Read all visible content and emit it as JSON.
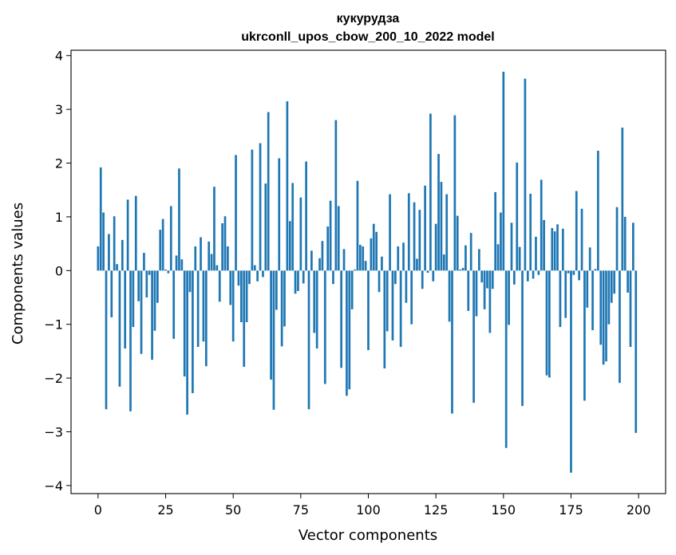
{
  "chart_data": {
    "type": "bar",
    "title": "кукурудза",
    "subtitle": "ukrconll_upos_cbow_200_10_2022 model",
    "xlabel": "Vector components",
    "ylabel": "Components values",
    "xlim": [
      -10,
      210
    ],
    "ylim": [
      -4.15,
      4.1
    ],
    "xticks": [
      0,
      25,
      50,
      75,
      100,
      125,
      150,
      175,
      200
    ],
    "yticks": [
      -4,
      -3,
      -2,
      -1,
      0,
      1,
      2,
      3,
      4
    ],
    "ytick_labels": [
      "−4",
      "−3",
      "−2",
      "−1",
      "0",
      "1",
      "2",
      "3",
      "4"
    ],
    "grid": false,
    "bar_color": "#1f77b4",
    "x": [
      0,
      1,
      2,
      3,
      4,
      5,
      6,
      7,
      8,
      9,
      10,
      11,
      12,
      13,
      14,
      15,
      16,
      17,
      18,
      19,
      20,
      21,
      22,
      23,
      24,
      25,
      26,
      27,
      28,
      29,
      30,
      31,
      32,
      33,
      34,
      35,
      36,
      37,
      38,
      39,
      40,
      41,
      42,
      43,
      44,
      45,
      46,
      47,
      48,
      49,
      50,
      51,
      52,
      53,
      54,
      55,
      56,
      57,
      58,
      59,
      60,
      61,
      62,
      63,
      64,
      65,
      66,
      67,
      68,
      69,
      70,
      71,
      72,
      73,
      74,
      75,
      76,
      77,
      78,
      79,
      80,
      81,
      82,
      83,
      84,
      85,
      86,
      87,
      88,
      89,
      90,
      91,
      92,
      93,
      94,
      95,
      96,
      97,
      98,
      99,
      100,
      101,
      102,
      103,
      104,
      105,
      106,
      107,
      108,
      109,
      110,
      111,
      112,
      113,
      114,
      115,
      116,
      117,
      118,
      119,
      120,
      121,
      122,
      123,
      124,
      125,
      126,
      127,
      128,
      129,
      130,
      131,
      132,
      133,
      134,
      135,
      136,
      137,
      138,
      139,
      140,
      141,
      142,
      143,
      144,
      145,
      146,
      147,
      148,
      149,
      150,
      151,
      152,
      153,
      154,
      155,
      156,
      157,
      158,
      159,
      160,
      161,
      162,
      163,
      164,
      165,
      166,
      167,
      168,
      169,
      170,
      171,
      172,
      173,
      174,
      175,
      176,
      177,
      178,
      179,
      180,
      181,
      182,
      183,
      184,
      185,
      186,
      187,
      188,
      189,
      190,
      191,
      192,
      193,
      194,
      195,
      196,
      197,
      198,
      199
    ],
    "values": [
      0.45,
      1.92,
      1.08,
      -2.58,
      0.68,
      -0.87,
      1.01,
      0.12,
      -2.16,
      0.57,
      -1.45,
      1.32,
      -2.62,
      -1.05,
      1.39,
      -0.57,
      -1.55,
      0.33,
      -0.5,
      -0.08,
      -1.66,
      -1.12,
      -0.6,
      0.76,
      0.96,
      0.02,
      -0.05,
      1.2,
      -1.27,
      0.28,
      1.9,
      0.21,
      -1.97,
      -2.68,
      -0.4,
      -2.28,
      0.45,
      -1.42,
      0.62,
      -1.32,
      -1.78,
      0.54,
      0.31,
      1.56,
      0.1,
      -0.58,
      0.88,
      1.01,
      0.45,
      -0.64,
      -1.32,
      2.15,
      -0.28,
      -0.96,
      -1.79,
      -0.96,
      -0.25,
      2.25,
      0.1,
      -0.2,
      2.37,
      -0.12,
      1.62,
      2.95,
      -2.03,
      -2.59,
      -0.73,
      2.09,
      -1.41,
      -1.04,
      3.15,
      0.92,
      1.63,
      -0.43,
      -0.38,
      1.36,
      -0.24,
      2.03,
      -2.58,
      0.37,
      -1.16,
      -1.45,
      0.23,
      0.55,
      -2.11,
      0.82,
      1.3,
      -0.25,
      2.8,
      1.2,
      -1.81,
      0.4,
      -2.33,
      -2.21,
      -0.72,
      0.02,
      1.67,
      0.48,
      0.45,
      0.18,
      -1.48,
      0.6,
      0.87,
      0.72,
      -0.4,
      0.26,
      -1.82,
      -1.13,
      1.42,
      -1.3,
      -0.25,
      0.45,
      -1.42,
      0.52,
      -0.6,
      1.44,
      -1.0,
      1.27,
      0.22,
      1.13,
      -0.34,
      1.58,
      -0.04,
      2.92,
      -0.2,
      0.87,
      2.17,
      1.65,
      0.3,
      1.42,
      -0.95,
      -2.66,
      2.89,
      1.02,
      0.02,
      0.05,
      0.47,
      -0.75,
      0.7,
      -2.46,
      -0.85,
      0.4,
      -0.22,
      -0.72,
      -0.33,
      -1.16,
      -0.34,
      1.46,
      0.49,
      1.08,
      3.7,
      -3.3,
      -1.01,
      0.89,
      -0.26,
      2.01,
      0.44,
      -2.52,
      3.57,
      -0.2,
      1.43,
      -0.15,
      0.63,
      -0.08,
      1.69,
      0.94,
      -1.95,
      -1.99,
      0.79,
      0.73,
      0.86,
      -1.05,
      0.78,
      -0.88,
      -0.05,
      -3.76,
      -0.08,
      1.48,
      -0.18,
      1.15,
      -2.42,
      -0.69,
      0.43,
      -1.11,
      0.03,
      2.23,
      -1.38,
      -1.75,
      -1.69,
      -1.0,
      -0.6,
      -0.43,
      1.18,
      -2.09,
      2.66,
      1.0,
      -0.41,
      -1.42,
      0.89,
      -3.02
    ]
  }
}
